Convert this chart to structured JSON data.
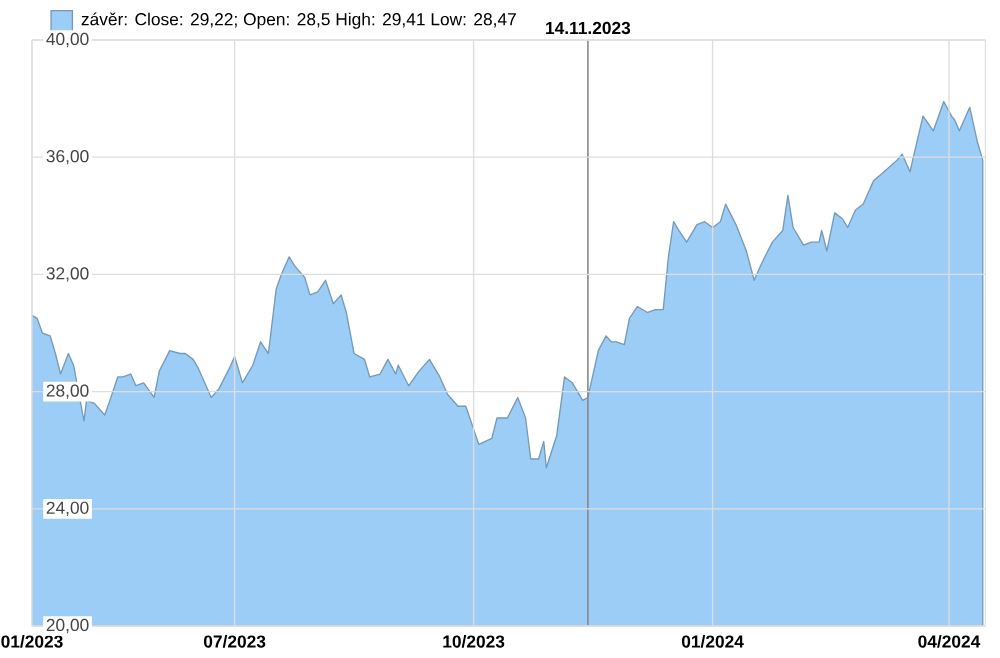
{
  "chart_data": {
    "type": "area",
    "x": [
      "2023-04-14",
      "2023-04-16",
      "2023-04-18",
      "2023-04-21",
      "2023-04-23",
      "2023-04-25",
      "2023-04-28",
      "2023-04-30",
      "2023-05-04",
      "2023-05-05",
      "2023-05-08",
      "2023-05-12",
      "2023-05-14",
      "2023-05-17",
      "2023-05-19",
      "2023-05-22",
      "2023-05-24",
      "2023-05-27",
      "2023-05-31",
      "2023-06-02",
      "2023-06-06",
      "2023-06-10",
      "2023-06-12",
      "2023-06-15",
      "2023-06-17",
      "2023-06-22",
      "2023-06-25",
      "2023-06-29",
      "2023-07-01",
      "2023-07-04",
      "2023-07-08",
      "2023-07-11",
      "2023-07-14",
      "2023-07-17",
      "2023-07-19",
      "2023-07-22",
      "2023-07-24",
      "2023-07-28",
      "2023-07-30",
      "2023-08-02",
      "2023-08-05",
      "2023-08-08",
      "2023-08-11",
      "2023-08-13",
      "2023-08-16",
      "2023-08-20",
      "2023-08-22",
      "2023-08-26",
      "2023-08-29",
      "2023-09-01",
      "2023-09-02",
      "2023-09-06",
      "2023-09-10",
      "2023-09-14",
      "2023-09-18",
      "2023-09-21",
      "2023-09-25",
      "2023-09-28",
      "2023-10-03",
      "2023-10-08",
      "2023-10-10",
      "2023-10-14",
      "2023-10-18",
      "2023-10-21",
      "2023-10-23",
      "2023-10-26",
      "2023-10-28",
      "2023-10-29",
      "2023-11-02",
      "2023-11-05",
      "2023-11-08",
      "2023-11-12",
      "2023-11-14",
      "2023-11-18",
      "2023-11-21",
      "2023-11-23",
      "2023-11-25",
      "2023-11-28",
      "2023-11-30",
      "2023-12-03",
      "2023-12-07",
      "2023-12-10",
      "2023-12-13",
      "2023-12-15",
      "2023-12-17",
      "2023-12-19",
      "2023-12-22",
      "2023-12-26",
      "2023-12-29",
      "2024-01-01",
      "2024-01-04",
      "2024-01-06",
      "2024-01-10",
      "2024-01-14",
      "2024-01-17",
      "2024-01-20",
      "2024-01-24",
      "2024-01-28",
      "2024-01-30",
      "2024-02-01",
      "2024-02-05",
      "2024-02-08",
      "2024-02-11",
      "2024-02-12",
      "2024-02-14",
      "2024-02-17",
      "2024-02-20",
      "2024-02-22",
      "2024-02-25",
      "2024-02-28",
      "2024-03-03",
      "2024-03-07",
      "2024-03-12",
      "2024-03-14",
      "2024-03-17",
      "2024-03-18",
      "2024-03-22",
      "2024-03-26",
      "2024-03-30",
      "2024-04-02",
      "2024-04-03",
      "2024-04-05",
      "2024-04-09",
      "2024-04-12",
      "2024-04-14"
    ],
    "series": [
      {
        "name": "závěr: Close: 29,22; Open: 28,5 High: 29,41 Low: 28,47",
        "color": "#9ccdf6",
        "values": [
          30.6,
          30.5,
          30.0,
          29.9,
          29.3,
          28.6,
          29.3,
          28.9,
          27.0,
          27.7,
          27.6,
          27.2,
          27.7,
          28.5,
          28.5,
          28.6,
          28.2,
          28.3,
          27.8,
          28.7,
          29.4,
          29.3,
          29.3,
          29.1,
          28.8,
          27.8,
          28.1,
          28.8,
          29.2,
          28.3,
          28.9,
          29.7,
          29.3,
          31.5,
          32.0,
          32.6,
          32.3,
          31.9,
          31.3,
          31.4,
          31.8,
          31.0,
          31.3,
          30.7,
          29.3,
          29.1,
          28.5,
          28.6,
          29.1,
          28.6,
          28.9,
          28.2,
          28.7,
          29.1,
          28.5,
          27.9,
          27.5,
          27.5,
          26.2,
          26.4,
          27.1,
          27.1,
          27.8,
          27.1,
          25.7,
          25.7,
          26.3,
          25.4,
          26.5,
          28.5,
          28.3,
          27.7,
          27.8,
          29.4,
          29.9,
          29.7,
          29.7,
          29.6,
          30.5,
          30.9,
          30.7,
          30.8,
          30.8,
          32.6,
          33.8,
          33.5,
          33.1,
          33.7,
          33.8,
          33.6,
          33.8,
          34.4,
          33.7,
          32.8,
          31.8,
          32.4,
          33.1,
          33.5,
          34.7,
          33.6,
          33.0,
          33.1,
          33.1,
          33.5,
          32.8,
          34.1,
          33.9,
          33.6,
          34.2,
          34.4,
          35.2,
          35.5,
          35.9,
          36.1,
          35.5,
          35.9,
          37.4,
          36.9,
          37.9,
          37.4,
          37.3,
          36.9,
          37.7,
          36.5,
          35.9
        ]
      }
    ],
    "xlim": [
      "2023-04-14",
      "2024-04-15"
    ],
    "xticks": [
      {
        "value": "2023-04-14",
        "label": "01/2023"
      },
      {
        "value": "2023-07-01",
        "label": "07/2023"
      },
      {
        "value": "2023-10-01",
        "label": "10/2023"
      },
      {
        "value": "2024-01-01",
        "label": "01/2024"
      },
      {
        "value": "2024-04-01",
        "label": "04/2024"
      }
    ],
    "ylim": [
      20,
      40
    ],
    "yticks": [
      {
        "value": 20,
        "label": "20,00"
      },
      {
        "value": 24,
        "label": "24,00"
      },
      {
        "value": 28,
        "label": "28,00"
      },
      {
        "value": 32,
        "label": "32,00"
      },
      {
        "value": 36,
        "label": "36,00"
      },
      {
        "value": 40,
        "label": "40,00"
      }
    ],
    "ref_lines": [
      {
        "axis": "x",
        "value": "2023-11-14",
        "label": "14.11.2023",
        "color": "#888888"
      }
    ],
    "grid": true,
    "legend": "top left"
  }
}
